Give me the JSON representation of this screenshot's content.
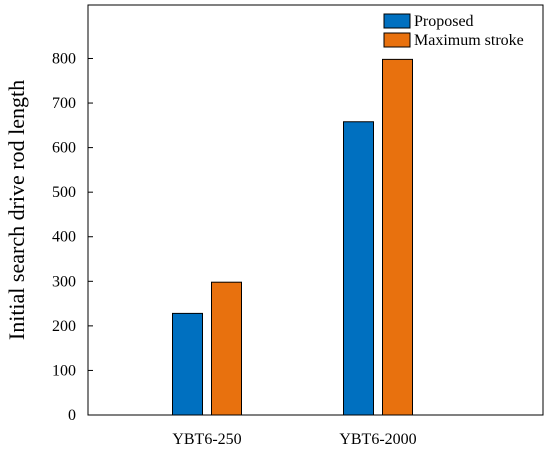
{
  "chart_data": {
    "type": "bar",
    "title": "",
    "xlabel": "",
    "ylabel": "Initial search drive rod length",
    "categories": [
      "YBT6-250",
      "YBT6-2000"
    ],
    "series": [
      {
        "name": "Proposed",
        "values": [
          228,
          658
        ],
        "color": "#0070C0"
      },
      {
        "name": "Maximum stroke",
        "values": [
          298,
          798
        ],
        "color": "#E8710E"
      }
    ],
    "ylim": [
      0,
      920
    ],
    "yticks": [
      0,
      100,
      200,
      300,
      400,
      500,
      600,
      700,
      800
    ],
    "grid": false,
    "legend_position": "top-right"
  }
}
